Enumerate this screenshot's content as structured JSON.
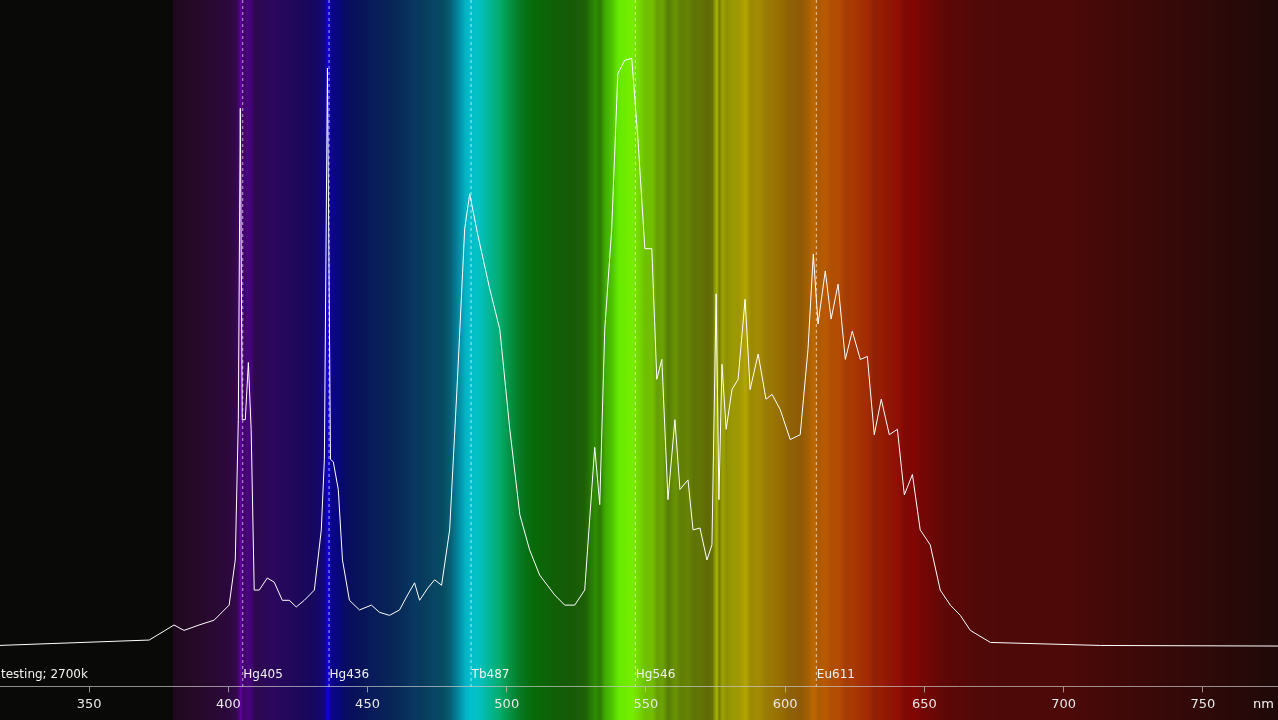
{
  "chart_data": {
    "type": "line",
    "title": "testing; 2700k",
    "xlabel": "nm",
    "x": [
      317.6,
      371.6,
      380.5,
      384.1,
      389.5,
      394.9,
      400.3,
      402.5,
      403.6,
      404.3,
      405.0,
      406.1,
      407.2,
      408.2,
      409.3,
      411.1,
      414.0,
      416.5,
      419.4,
      421.9,
      424.4,
      427.3,
      430.9,
      433.4,
      434.5,
      435.6,
      436.7,
      437.7,
      439.5,
      441.0,
      443.5,
      447.1,
      451.4,
      454.3,
      457.9,
      461.5,
      464.4,
      466.9,
      468.7,
      471.6,
      474.1,
      476.6,
      479.5,
      482.3,
      484.9,
      486.7,
      489.5,
      493.9,
      497.5,
      501.1,
      504.7,
      508.2,
      511.8,
      517.2,
      520.8,
      524.4,
      528.0,
      531.6,
      533.4,
      535.2,
      537.7,
      539.9,
      542.4,
      544.9,
      547.1,
      549.6,
      552.1,
      553.9,
      555.7,
      557.9,
      560.4,
      562.2,
      565.1,
      566.9,
      569.4,
      571.9,
      573.7,
      575.2,
      576.2,
      577.3,
      578.8,
      580.9,
      583.1,
      585.6,
      587.4,
      590.3,
      593.1,
      595.3,
      598.2,
      601.8,
      605.4,
      608.2,
      610.1,
      611.8,
      614.4,
      616.5,
      619.0,
      621.6,
      624.1,
      627.0,
      629.5,
      632.0,
      634.5,
      637.4,
      640.3,
      642.8,
      645.7,
      648.5,
      652.1,
      655.7,
      659.3,
      662.9,
      666.5,
      673.7,
      713.3,
      777.3
    ],
    "values": [
      0.8,
      1.7,
      4.2,
      3.3,
      4.2,
      5,
      7.5,
      15,
      38.3,
      90,
      38.3,
      38.3,
      47.8,
      36.7,
      10,
      10,
      12,
      11.3,
      8.3,
      8.3,
      7.2,
      8.3,
      10,
      20,
      31.7,
      96.7,
      31.7,
      31.3,
      26.7,
      15,
      8.3,
      6.7,
      7.5,
      6.3,
      5.8,
      6.7,
      9.2,
      11.2,
      8.3,
      10.3,
      11.7,
      10.8,
      20,
      45,
      70,
      75.8,
      69.2,
      60,
      53.3,
      36.7,
      22.5,
      16.7,
      12.5,
      9.2,
      7.5,
      7.5,
      10,
      33.7,
      24.2,
      53.3,
      70,
      95.8,
      98,
      98.3,
      85,
      66.7,
      66.7,
      45,
      48.3,
      25,
      38.3,
      26.7,
      28.3,
      20,
      20.3,
      15,
      17.5,
      59.2,
      25,
      47.5,
      36.7,
      43.3,
      45,
      58.3,
      43.3,
      49.2,
      41.7,
      42.5,
      40,
      35,
      35.8,
      50,
      65.8,
      54.2,
      63,
      55,
      60.8,
      48.3,
      53,
      48.3,
      48.8,
      35.8,
      41.7,
      35.8,
      36.7,
      25.8,
      29.2,
      20,
      17.5,
      10,
      7.5,
      5.8,
      3.3,
      1.3,
      0.8,
      0.7
    ],
    "color": "#ffffff",
    "xlim": [
      318,
      777
    ],
    "xticks": [
      350,
      400,
      450,
      500,
      550,
      600,
      650,
      700,
      750
    ],
    "ylim": [
      -6,
      108
    ],
    "tick_labels": "x",
    "grid": false,
    "legend": false,
    "annotations": [
      {
        "label": "Hg405",
        "x": 405
      },
      {
        "label": "Hg436",
        "x": 436
      },
      {
        "label": "Tb487",
        "x": 487
      },
      {
        "label": "Hg546",
        "x": 546
      },
      {
        "label": "Eu611",
        "x": 611
      }
    ]
  }
}
